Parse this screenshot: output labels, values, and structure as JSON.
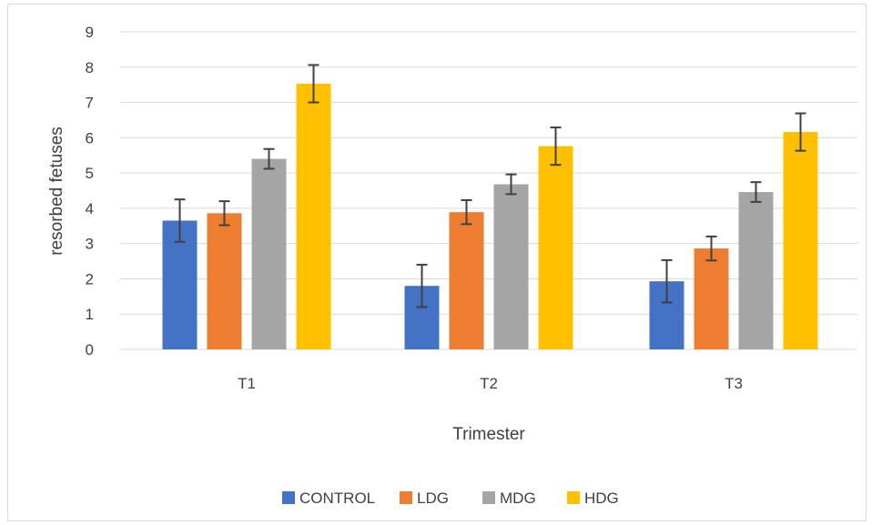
{
  "chart_data": {
    "type": "bar",
    "title": "",
    "xlabel": "Trimester",
    "ylabel": "resorbed fetuses",
    "categories": [
      "T1",
      "T2",
      "T3"
    ],
    "ylim": [
      0,
      9
    ],
    "yticks": [
      0,
      1,
      2,
      3,
      4,
      5,
      6,
      7,
      8,
      9
    ],
    "grid": true,
    "legend_position": "bottom",
    "series": [
      {
        "name": "CONTROL",
        "color": "#4472C4",
        "values": [
          3.65,
          1.8,
          1.93
        ],
        "errors": [
          0.6,
          0.6,
          0.6
        ]
      },
      {
        "name": "LDG",
        "color": "#ED7D31",
        "values": [
          3.86,
          3.89,
          2.86
        ],
        "errors": [
          0.34,
          0.34,
          0.34
        ]
      },
      {
        "name": "MDG",
        "color": "#A5A5A5",
        "values": [
          5.4,
          4.68,
          4.46
        ],
        "errors": [
          0.28,
          0.28,
          0.28
        ]
      },
      {
        "name": "HDG",
        "color": "#FFC000",
        "values": [
          7.53,
          5.76,
          6.16
        ],
        "errors": [
          0.53,
          0.53,
          0.53
        ]
      }
    ]
  }
}
